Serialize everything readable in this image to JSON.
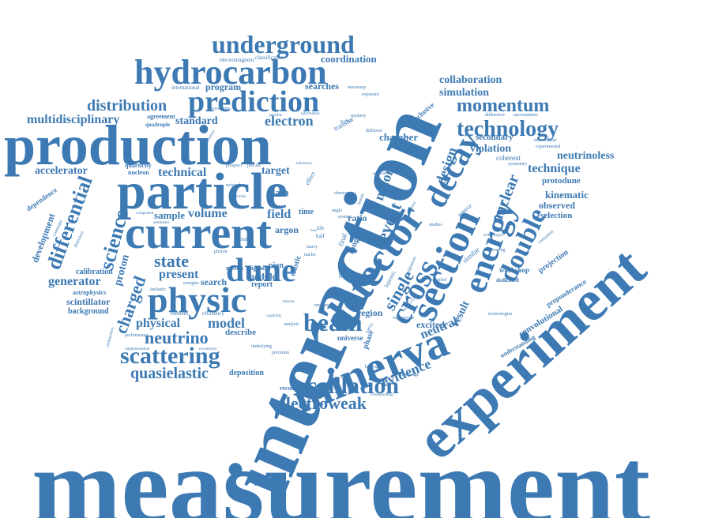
{
  "style": {
    "word_color": "#3d7ab3",
    "background": "#ffffff"
  },
  "words": {
    "measurement": "measurement",
    "interaction": "interaction",
    "experiment": "experiment",
    "production": "production",
    "particle": "particle",
    "current": "current",
    "detector": "detector",
    "minerva": "minerva",
    "section": "section",
    "energy": "energy",
    "hydrocarbon": "hydrocarbon",
    "prediction": "prediction",
    "underground": "underground",
    "physic": "physic",
    "dune": "dune",
    "decay": "decay",
    "double": "double",
    "cross": "cross",
    "beam": "beam",
    "oscillation": "oscillation",
    "electroweak": "electroweak",
    "scattering": "scattering",
    "neutrino": "neutrino",
    "quasielastic": "quasielastic",
    "technology": "technology",
    "momentum": "momentum",
    "distribution": "distribution",
    "collaboration": "collaboration",
    "simulation": "simulation",
    "multidisciplinary": "multidisciplinary",
    "electron": "electron",
    "standard": "standard",
    "accelerator": "accelerator",
    "technical": "technical",
    "science": "science",
    "differential": "differential",
    "charged": "charged",
    "state": "state",
    "present": "present",
    "volume": "volume",
    "field": "field",
    "sample": "sample",
    "generator": "generator",
    "scintillator": "scintillator",
    "background": "background",
    "calibration": "calibration",
    "proton": "proton",
    "development": "development",
    "physical": "physical",
    "model": "model",
    "nuclear": "nuclear",
    "technique": "technique",
    "neutrinoless": "neutrinoless",
    "violation": "violation",
    "secondary": "secondary",
    "kinematic": "kinematic",
    "observed": "observed",
    "selection": "selection",
    "protodune": "protodune",
    "evidence": "evidence",
    "neutral": "neutral",
    "excited": "excited",
    "result": "result",
    "event": "event",
    "muon": "muon",
    "single": "single",
    "design": "design",
    "argon": "argon",
    "target": "target",
    "coordination": "coordination",
    "program": "program",
    "searches": "searches",
    "agreement": "agreement",
    "quadruple": "quadruple",
    "dependence": "dependence",
    "chamber": "chamber",
    "inclusive": "inclusive",
    "workshop": "workshop",
    "projection": "projection",
    "convolutional": "convolutional",
    "preponderance": "preponderance",
    "understanding": "understanding",
    "astrophysics": "astrophysics",
    "search": "search",
    "signal": "signal",
    "pion": "pion",
    "meson": "meson",
    "module": "module",
    "report": "report",
    "describe": "describe",
    "deposition": "deposition",
    "reconstruction": "reconstruction",
    "universe": "universe",
    "region": "region",
    "phase": "phase",
    "elastic": "elastic",
    "data": "data",
    "time": "time",
    "ratio": "ratio",
    "range": "range",
    "classification": "classification",
    "electromagnetic": "electromagnetic",
    "international": "international",
    "necessary": "necessary",
    "exposure": "exposure",
    "correlation": "correlation",
    "diffractive": "diffractive",
    "uncertainties": "uncertainties",
    "intranuclear": "intranuclear",
    "experimental": "experimental",
    "coherent": "coherent",
    "symmetry": "symmetry",
    "quarticity": "quarticity",
    "nucleon": "nucleon",
    "prospect": "prospect",
    "precise": "precise",
    "effect": "effect",
    "source": "source",
    "dedicated": "dedicated",
    "operating": "operating",
    "consistent": "consistent",
    "similar": "similar",
    "detailed": "detailed",
    "leptonic": "leptonic",
    "burst": "burst",
    "final": "final",
    "photon": "photon",
    "ground": "ground",
    "inelastic": "inelastic",
    "energies": "energies",
    "element": "element",
    "efficiency": "efficiency",
    "performance": "performance",
    "implementation": "implementation",
    "reconstruct": "reconstruct",
    "underlying": "underlying",
    "precision": "precision",
    "analysis": "analysis",
    "hydrogen": "hydrogen",
    "knowledge": "knowledge",
    "corresponding": "corresponding",
    "antimatter": "antimatter",
    "network": "network",
    "provide": "provide",
    "different": "different",
    "hadronic": "hadronic",
    "transfer": "transfer",
    "studies": "studies",
    "signature": "signature",
    "supernovae": "supernovae",
    "sensitivity": "sensitivity",
    "life": "life",
    "half": "half",
    "new": "new",
    "potential": "potential",
    "addition": "addition",
    "constrain": "constrain",
    "detection": "detection",
    "configuration": "configuration",
    "possible": "possible",
    "information": "information",
    "boson": "boson",
    "summary": "summary",
    "technologies": "technologies",
    "component": "component",
    "nuclei": "nuclei",
    "observe": "observe",
    "system": "system",
    "mesons": "mesons",
    "angle": "angle",
    "capability": "capability",
    "measure": "measure",
    "heavy": "heavy",
    "laboratory": "laboratory",
    "spectral": "spectral",
    "mystery": "mystery",
    "parity": "parity"
  }
}
